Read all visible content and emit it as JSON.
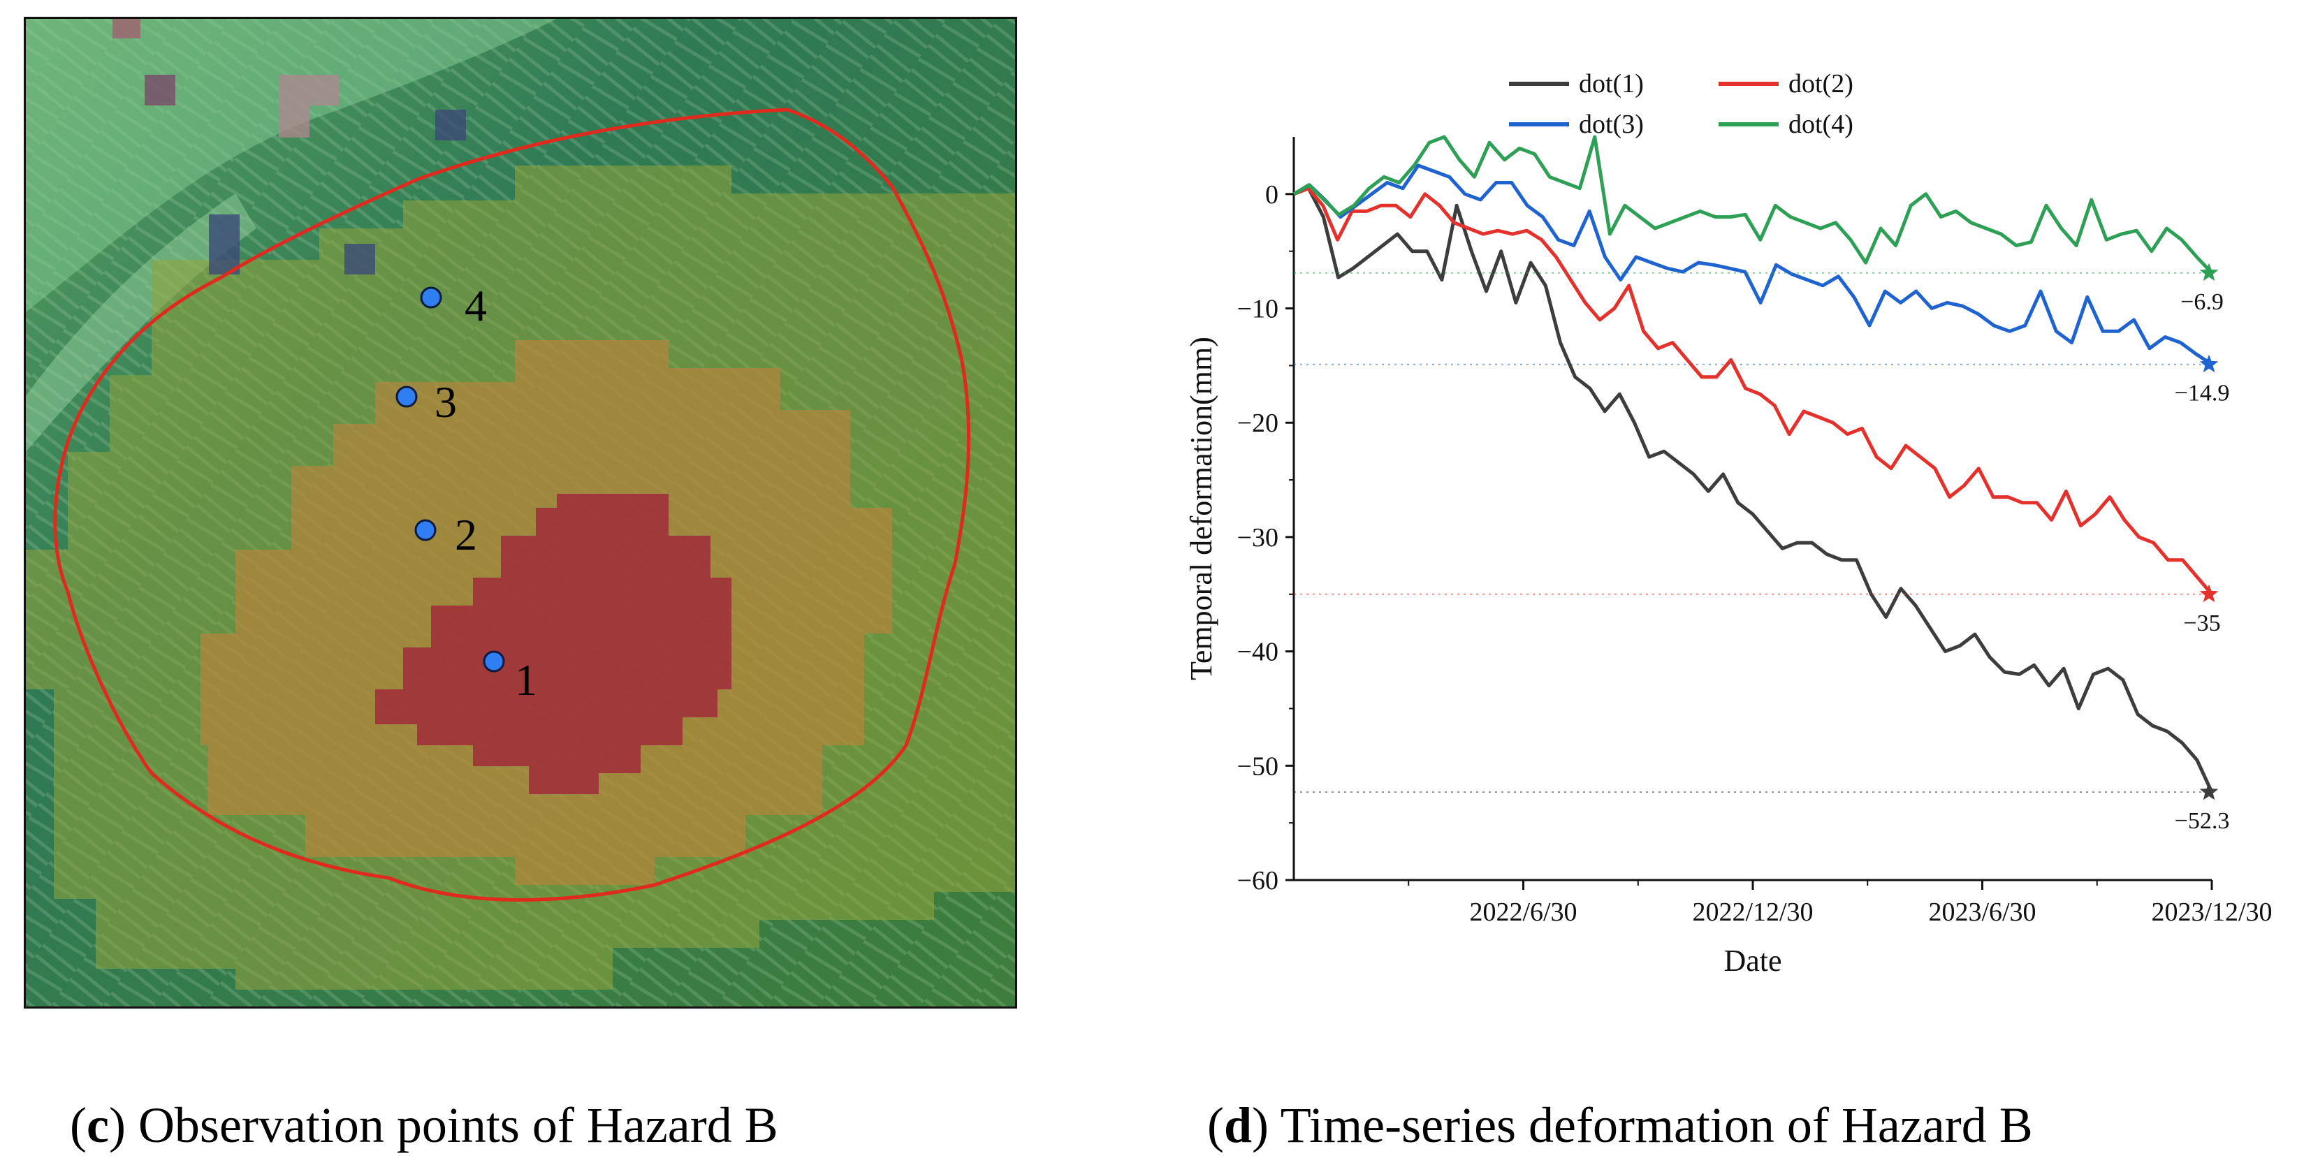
{
  "captions": {
    "c": {
      "letter": "c",
      "text": "Observation points of Hazard B"
    },
    "d": {
      "letter": "d",
      "text": "Time-series deformation of Hazard B"
    }
  },
  "map": {
    "points": [
      {
        "label": "1"
      },
      {
        "label": "2"
      },
      {
        "label": "3"
      },
      {
        "label": "4"
      }
    ],
    "colors": {
      "boundary": "#e02a1e",
      "point_fill": "#2f7ff2",
      "high": "#a0202e",
      "medium": "#b58a36",
      "low": "#6f9a32",
      "background": "#2f7a4a"
    }
  },
  "chart_data": {
    "type": "line",
    "title": "",
    "xlabel": "Date",
    "ylabel": "Temporal deformation(mm)",
    "ylim": [
      -60,
      5
    ],
    "yticks": [
      0,
      -10,
      -20,
      -30,
      -40,
      -50,
      -60
    ],
    "x_index_range": [
      0,
      80
    ],
    "xtick_index": [
      20,
      40,
      60,
      80
    ],
    "xticks": [
      "2022/6/30",
      "2022/12/30",
      "2023/6/30",
      "2023/12/30"
    ],
    "series": [
      {
        "name": "dot(1)",
        "color": "#3d3d3d",
        "end_label": "−52.3",
        "values": [
          0,
          0.5,
          -2,
          -7.3,
          -6.5,
          -5.5,
          -4.5,
          -3.5,
          -5,
          -5,
          -7.5,
          -1,
          -5,
          -8.5,
          -5,
          -9.5,
          -6,
          -8,
          -13,
          -16,
          -17,
          -19,
          -17.5,
          -20,
          -23,
          -22.5,
          -23.5,
          -24.5,
          -26,
          -24.5,
          -27,
          -28,
          -29.5,
          -31,
          -30.5,
          -30.5,
          -31.5,
          -32,
          -32,
          -35,
          -37,
          -34.5,
          -36,
          -38,
          -40,
          -39.5,
          -38.5,
          -40.5,
          -41.8,
          -42,
          -41.2,
          -43,
          -41.5,
          -45,
          -42,
          -41.5,
          -42.5,
          -45.5,
          -46.5,
          -47,
          -48,
          -49.5,
          -52.3
        ]
      },
      {
        "name": "dot(2)",
        "color": "#e4312b",
        "end_label": "−35",
        "values": [
          0,
          0.5,
          -1,
          -4,
          -1.5,
          -1.5,
          -1,
          -1,
          -2,
          0,
          -1,
          -2.5,
          -3,
          -3.5,
          -3.2,
          -3.5,
          -3.2,
          -4,
          -5.5,
          -7.5,
          -9.5,
          -11,
          -10,
          -8,
          -12,
          -13.5,
          -13,
          -14.5,
          -16,
          -16,
          -14.5,
          -17,
          -17.5,
          -18.5,
          -21,
          -19,
          -19.5,
          -20,
          -21,
          -20.5,
          -23,
          -24,
          -22,
          -23,
          -24,
          -26.5,
          -25.5,
          -24,
          -26.5,
          -26.5,
          -27,
          -27,
          -28.5,
          -26,
          -29,
          -28,
          -26.5,
          -28.5,
          -30,
          -30.5,
          -32,
          -32,
          -33.5,
          -35
        ]
      },
      {
        "name": "dot(3)",
        "color": "#1f63d0",
        "end_label": "−14.9",
        "values": [
          0,
          0.8,
          -0.5,
          -2,
          -1,
          0,
          1,
          0.5,
          2.5,
          2,
          1.5,
          0,
          -0.5,
          1,
          1,
          -1,
          -2,
          -4,
          -4.5,
          -1.5,
          -5.5,
          -7.5,
          -5.5,
          -6,
          -6.5,
          -6.8,
          -6,
          -6.2,
          -6.5,
          -6.8,
          -9.5,
          -6.2,
          -7,
          -7.5,
          -8,
          -7.2,
          -9,
          -11.5,
          -8.5,
          -9.5,
          -8.5,
          -10,
          -9.5,
          -9.8,
          -10.5,
          -11.5,
          -12,
          -11.5,
          -8.5,
          -12,
          -13,
          -9,
          -12,
          -12,
          -11,
          -13.5,
          -12.5,
          -13,
          -14,
          -14.9
        ]
      },
      {
        "name": "dot(4)",
        "color": "#2ea055",
        "end_label": "−6.9",
        "values": [
          0,
          0.8,
          -0.5,
          -1.8,
          -1,
          0.5,
          1.5,
          1,
          2.5,
          4.5,
          5,
          3,
          1.5,
          4.5,
          3,
          4,
          3.5,
          1.5,
          1,
          0.5,
          5,
          -3.5,
          -1,
          -2,
          -3,
          -2.5,
          -2,
          -1.5,
          -2,
          -2,
          -1.8,
          -4,
          -1,
          -2,
          -2.5,
          -3,
          -2.5,
          -4,
          -6,
          -3,
          -4.5,
          -1,
          0,
          -2,
          -1.5,
          -2.5,
          -3,
          -3.5,
          -4.5,
          -4.2,
          -1,
          -3,
          -4.5,
          -0.5,
          -4,
          -3.5,
          -3.2,
          -5,
          -3,
          -4,
          -5.5,
          -6.9
        ]
      }
    ]
  }
}
